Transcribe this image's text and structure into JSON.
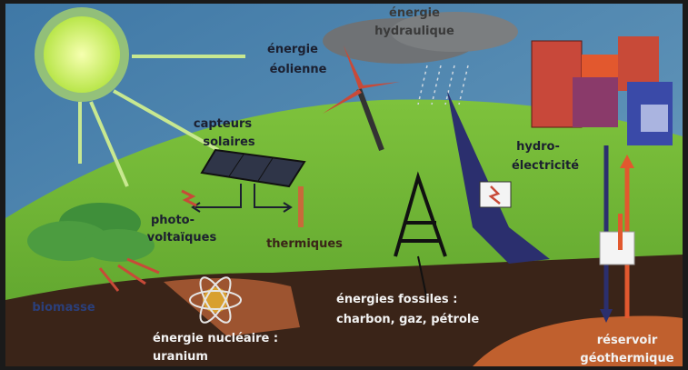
{
  "labels": {
    "hydraulique": [
      "énergie",
      "hydraulique"
    ],
    "eolienne": [
      "énergie",
      "éolienne"
    ],
    "capteurs": [
      "capteurs",
      "solaires"
    ],
    "hydroelectricite": [
      "hydro-",
      "électricité"
    ],
    "photovoltaiques": [
      "photo-",
      "voltaïques"
    ],
    "thermiques": [
      "thermiques"
    ],
    "biomasse": [
      "biomasse"
    ],
    "fossiles": [
      "énergies fossiles :",
      "charbon, gaz, pétrole"
    ],
    "nucleaire": [
      "énergie nucléaire :",
      "uranium"
    ],
    "geothermique": [
      "réservoir",
      "géothermique"
    ]
  }
}
